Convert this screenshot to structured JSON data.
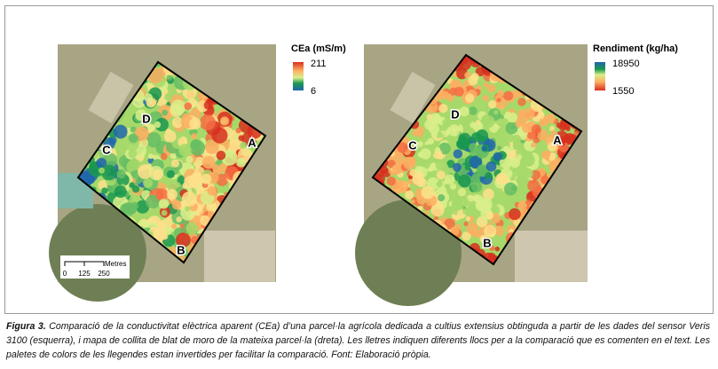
{
  "figure": {
    "left": {
      "legend": {
        "title": "CEa (mS/m)",
        "max": 211,
        "min": 6
      },
      "labels": [
        "A",
        "B",
        "C",
        "D"
      ],
      "scale": {
        "unit": "Metres",
        "ticks": [
          0,
          125,
          250
        ]
      }
    },
    "right": {
      "legend": {
        "title": "Rendiment (kg/ha)",
        "max": 18950,
        "min": 1550
      },
      "labels": [
        "A",
        "B",
        "C",
        "D"
      ]
    }
  },
  "caption": {
    "label": "Figura 3.",
    "text": "Comparació de la conductivitat elèctrica aparent (CEa) d’una parcel·la agrícola dedicada a cultius extensius obtinguda a partir de les dades del sensor Veris 3100 (esquerra), i mapa de collita de blat de moro de la mateixa parcel·la (dreta). Les lletres indiquen diferents llocs per a la comparació que es comenten en el text. Les paletes de colors de les llegendes estan invertides per facilitar la comparació. Font: Elaboració pròpia."
  }
}
